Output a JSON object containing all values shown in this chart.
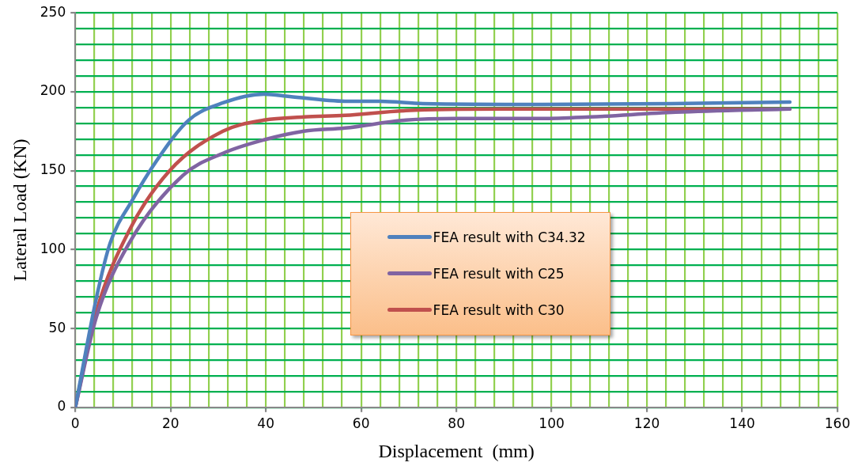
{
  "chart_data": {
    "type": "line",
    "xlabel": "Displacement  (mm)",
    "ylabel": "Lateral Load (KN)",
    "xlim": [
      0,
      160
    ],
    "ylim": [
      0,
      250
    ],
    "xticks": [
      0,
      {
        "value": 4,
        "label": null
      },
      {
        "value": 8,
        "label": null
      },
      {
        "value": 12,
        "label": null
      },
      {
        "value": 16,
        "label": null
      },
      20,
      {
        "value": 24,
        "label": null
      },
      {
        "value": 28,
        "label": null
      },
      {
        "value": 32,
        "label": null
      },
      {
        "value": 36,
        "label": null
      },
      40,
      {
        "value": 44,
        "label": null
      },
      {
        "value": 48,
        "label": null
      },
      {
        "value": 52,
        "label": null
      },
      {
        "value": 56,
        "label": null
      },
      60,
      {
        "value": 64,
        "label": null
      },
      {
        "value": 68,
        "label": null
      },
      {
        "value": 72,
        "label": null
      },
      {
        "value": 76,
        "label": null
      },
      80,
      {
        "value": 84,
        "label": null
      },
      {
        "value": 88,
        "label": null
      },
      {
        "value": 92,
        "label": null
      },
      {
        "value": 96,
        "label": null
      },
      100,
      {
        "value": 104,
        "label": null
      },
      {
        "value": 108,
        "label": null
      },
      {
        "value": 112,
        "label": null
      },
      {
        "value": 116,
        "label": null
      },
      120,
      {
        "value": 124,
        "label": null
      },
      {
        "value": 128,
        "label": null
      },
      {
        "value": 132,
        "label": null
      },
      {
        "value": 136,
        "label": null
      },
      140,
      {
        "value": 144,
        "label": null
      },
      {
        "value": 148,
        "label": null
      },
      {
        "value": 152,
        "label": null
      },
      {
        "value": 156,
        "label": null
      },
      160
    ],
    "yticks": [
      0,
      {
        "value": 10,
        "label": null
      },
      {
        "value": 20,
        "label": null
      },
      {
        "value": 30,
        "label": null
      },
      {
        "value": 40,
        "label": null
      },
      50,
      {
        "value": 60,
        "label": null
      },
      {
        "value": 70,
        "label": null
      },
      {
        "value": 80,
        "label": null
      },
      {
        "value": 90,
        "label": null
      },
      100,
      {
        "value": 110,
        "label": null
      },
      {
        "value": 120,
        "label": null
      },
      {
        "value": 130,
        "label": null
      },
      {
        "value": 140,
        "label": null
      },
      150,
      {
        "value": 160,
        "label": null
      },
      {
        "value": 170,
        "label": null
      },
      {
        "value": 180,
        "label": null
      },
      {
        "value": 190,
        "label": null
      },
      200,
      {
        "value": 210,
        "label": null
      },
      {
        "value": 220,
        "label": null
      },
      {
        "value": 230,
        "label": null
      },
      {
        "value": 240,
        "label": null
      },
      250
    ],
    "grid": true,
    "legend": "center",
    "marker": "none",
    "line_style": "solid",
    "series": [
      {
        "name": "FEA result with C34.32",
        "color": "#4f81bd",
        "x": [
          0,
          4.4,
          7.3,
          11.9,
          17,
          23.8,
          31,
          39.6,
          45,
          56.6,
          64,
          73,
          98,
          125,
          150
        ],
        "values": [
          0,
          69,
          104,
          131,
          156,
          182,
          193,
          198.5,
          197,
          194,
          194,
          192.5,
          192,
          192.5,
          193.5
        ]
      },
      {
        "name": "FEA result with C25",
        "color": "#8064a2",
        "x": [
          0,
          4.4,
          11.3,
          22.6,
          31,
          39.6,
          48,
          56.6,
          69.4,
          80,
          98,
          108,
          126,
          150
        ],
        "values": [
          0,
          57,
          104,
          147,
          161,
          169.5,
          175,
          177,
          182,
          183,
          183,
          184,
          187,
          189
        ]
      },
      {
        "name": "FEA result with C30",
        "color": "#c0504d",
        "x": [
          0,
          4.4,
          11.3,
          19.8,
          31,
          39.6,
          48,
          56.6,
          69.4,
          90,
          120,
          150
        ],
        "values": [
          0,
          60.5,
          112,
          150,
          175,
          182,
          184,
          185,
          188,
          189,
          189,
          189
        ]
      }
    ]
  }
}
